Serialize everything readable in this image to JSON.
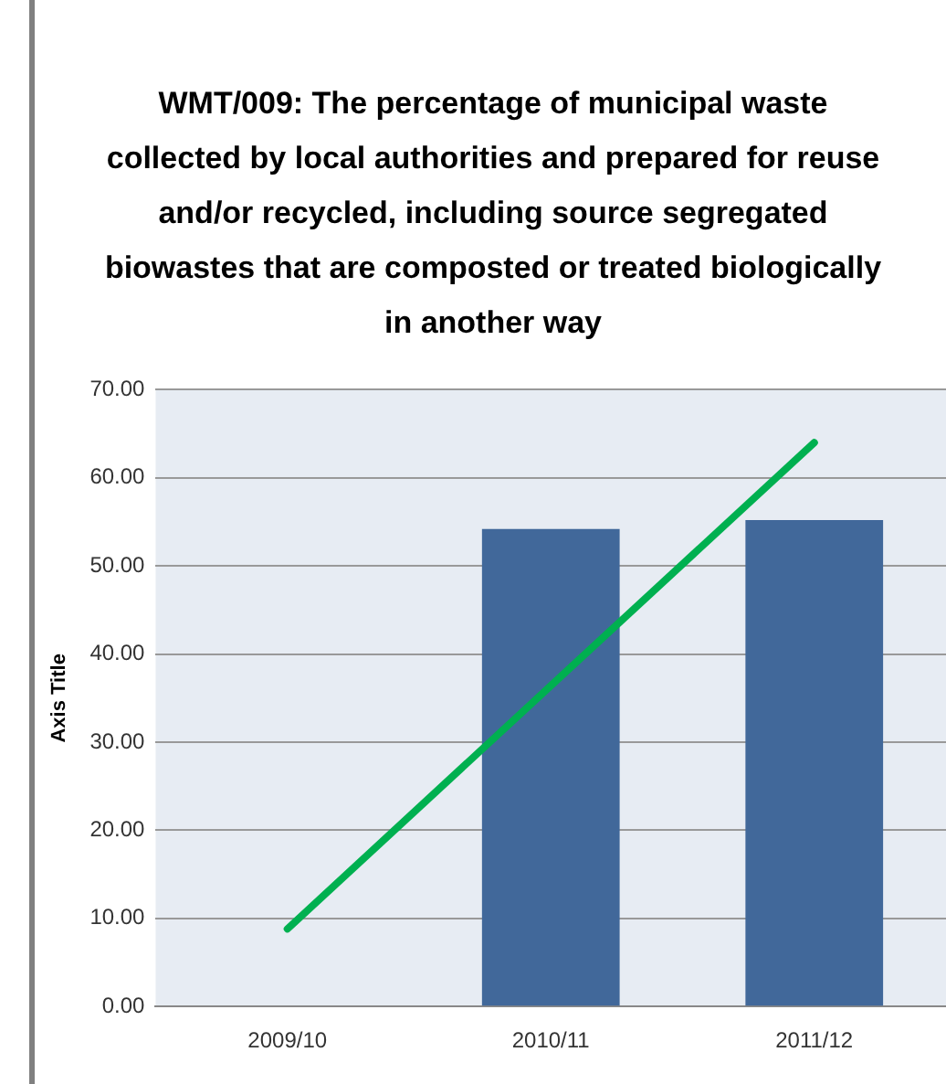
{
  "chart_data": {
    "type": "bar",
    "title": "WMT/009: The percentage of municipal waste collected by local authorities and prepared for reuse and/or recycled, including source segregated biowastes that are composted or treated biologically in another way",
    "ylabel": "Axis Title",
    "categories": [
      "2009/10",
      "2010/11",
      "2011/12"
    ],
    "series": [
      {
        "color": "#41689a",
        "values": [
          null,
          54.2,
          55.2
        ]
      },
      {
        "type": "line",
        "color": "#00b050",
        "values": [
          8.8,
          36.4,
          64.0
        ]
      }
    ],
    "ylim": [
      0,
      70
    ],
    "yticks": [
      {
        "value": 0,
        "label": "0.00"
      },
      {
        "value": 10,
        "label": "10.00"
      },
      {
        "value": 20,
        "label": "20.00"
      },
      {
        "value": 30,
        "label": "30.00"
      },
      {
        "value": 40,
        "label": "40.00"
      },
      {
        "value": 50,
        "label": "50.00"
      },
      {
        "value": 60,
        "label": "60.00"
      },
      {
        "value": 70,
        "label": "70.00"
      }
    ],
    "grid": "y",
    "legend": false,
    "marker": "none",
    "line_style": "solid"
  }
}
